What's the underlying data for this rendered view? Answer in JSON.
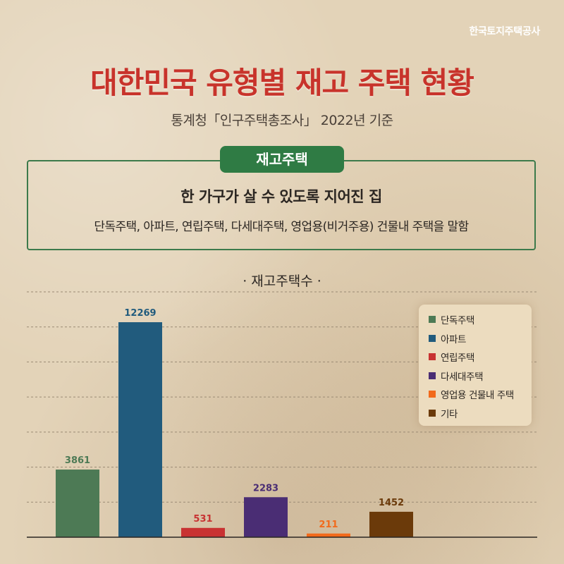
{
  "brand": "한국토지주택공사",
  "title": "대한민국 유형별 재고 주택 현황",
  "subtitle": "통계청「인구주택총조사」 2022년 기준",
  "definition": {
    "label": "재고주택",
    "heading": "한 가구가 살 수 있도록 지어진 집",
    "body": "단독주택, 아파트, 연립주택, 다세대주택, 영업용(비거주용) 건물내 주택을 말함"
  },
  "chart_heading": "· 재고주택수 ·",
  "chart_data": {
    "type": "bar",
    "categories": [
      "단독주택",
      "아파트",
      "연립주택",
      "다세대주택",
      "영업용 건물내 주택",
      "기타"
    ],
    "values": [
      3861,
      12269,
      531,
      2283,
      211,
      1452
    ],
    "value_labels": [
      "3861",
      "12269",
      "531",
      "2283",
      "211",
      "1452"
    ],
    "colors": [
      "#4d7a55",
      "#215b7d",
      "#c83232",
      "#4a2d74",
      "#f26a1b",
      "#6b3a0a"
    ],
    "ylim": [
      0,
      14000
    ],
    "grid": true,
    "legend": "top-right"
  }
}
